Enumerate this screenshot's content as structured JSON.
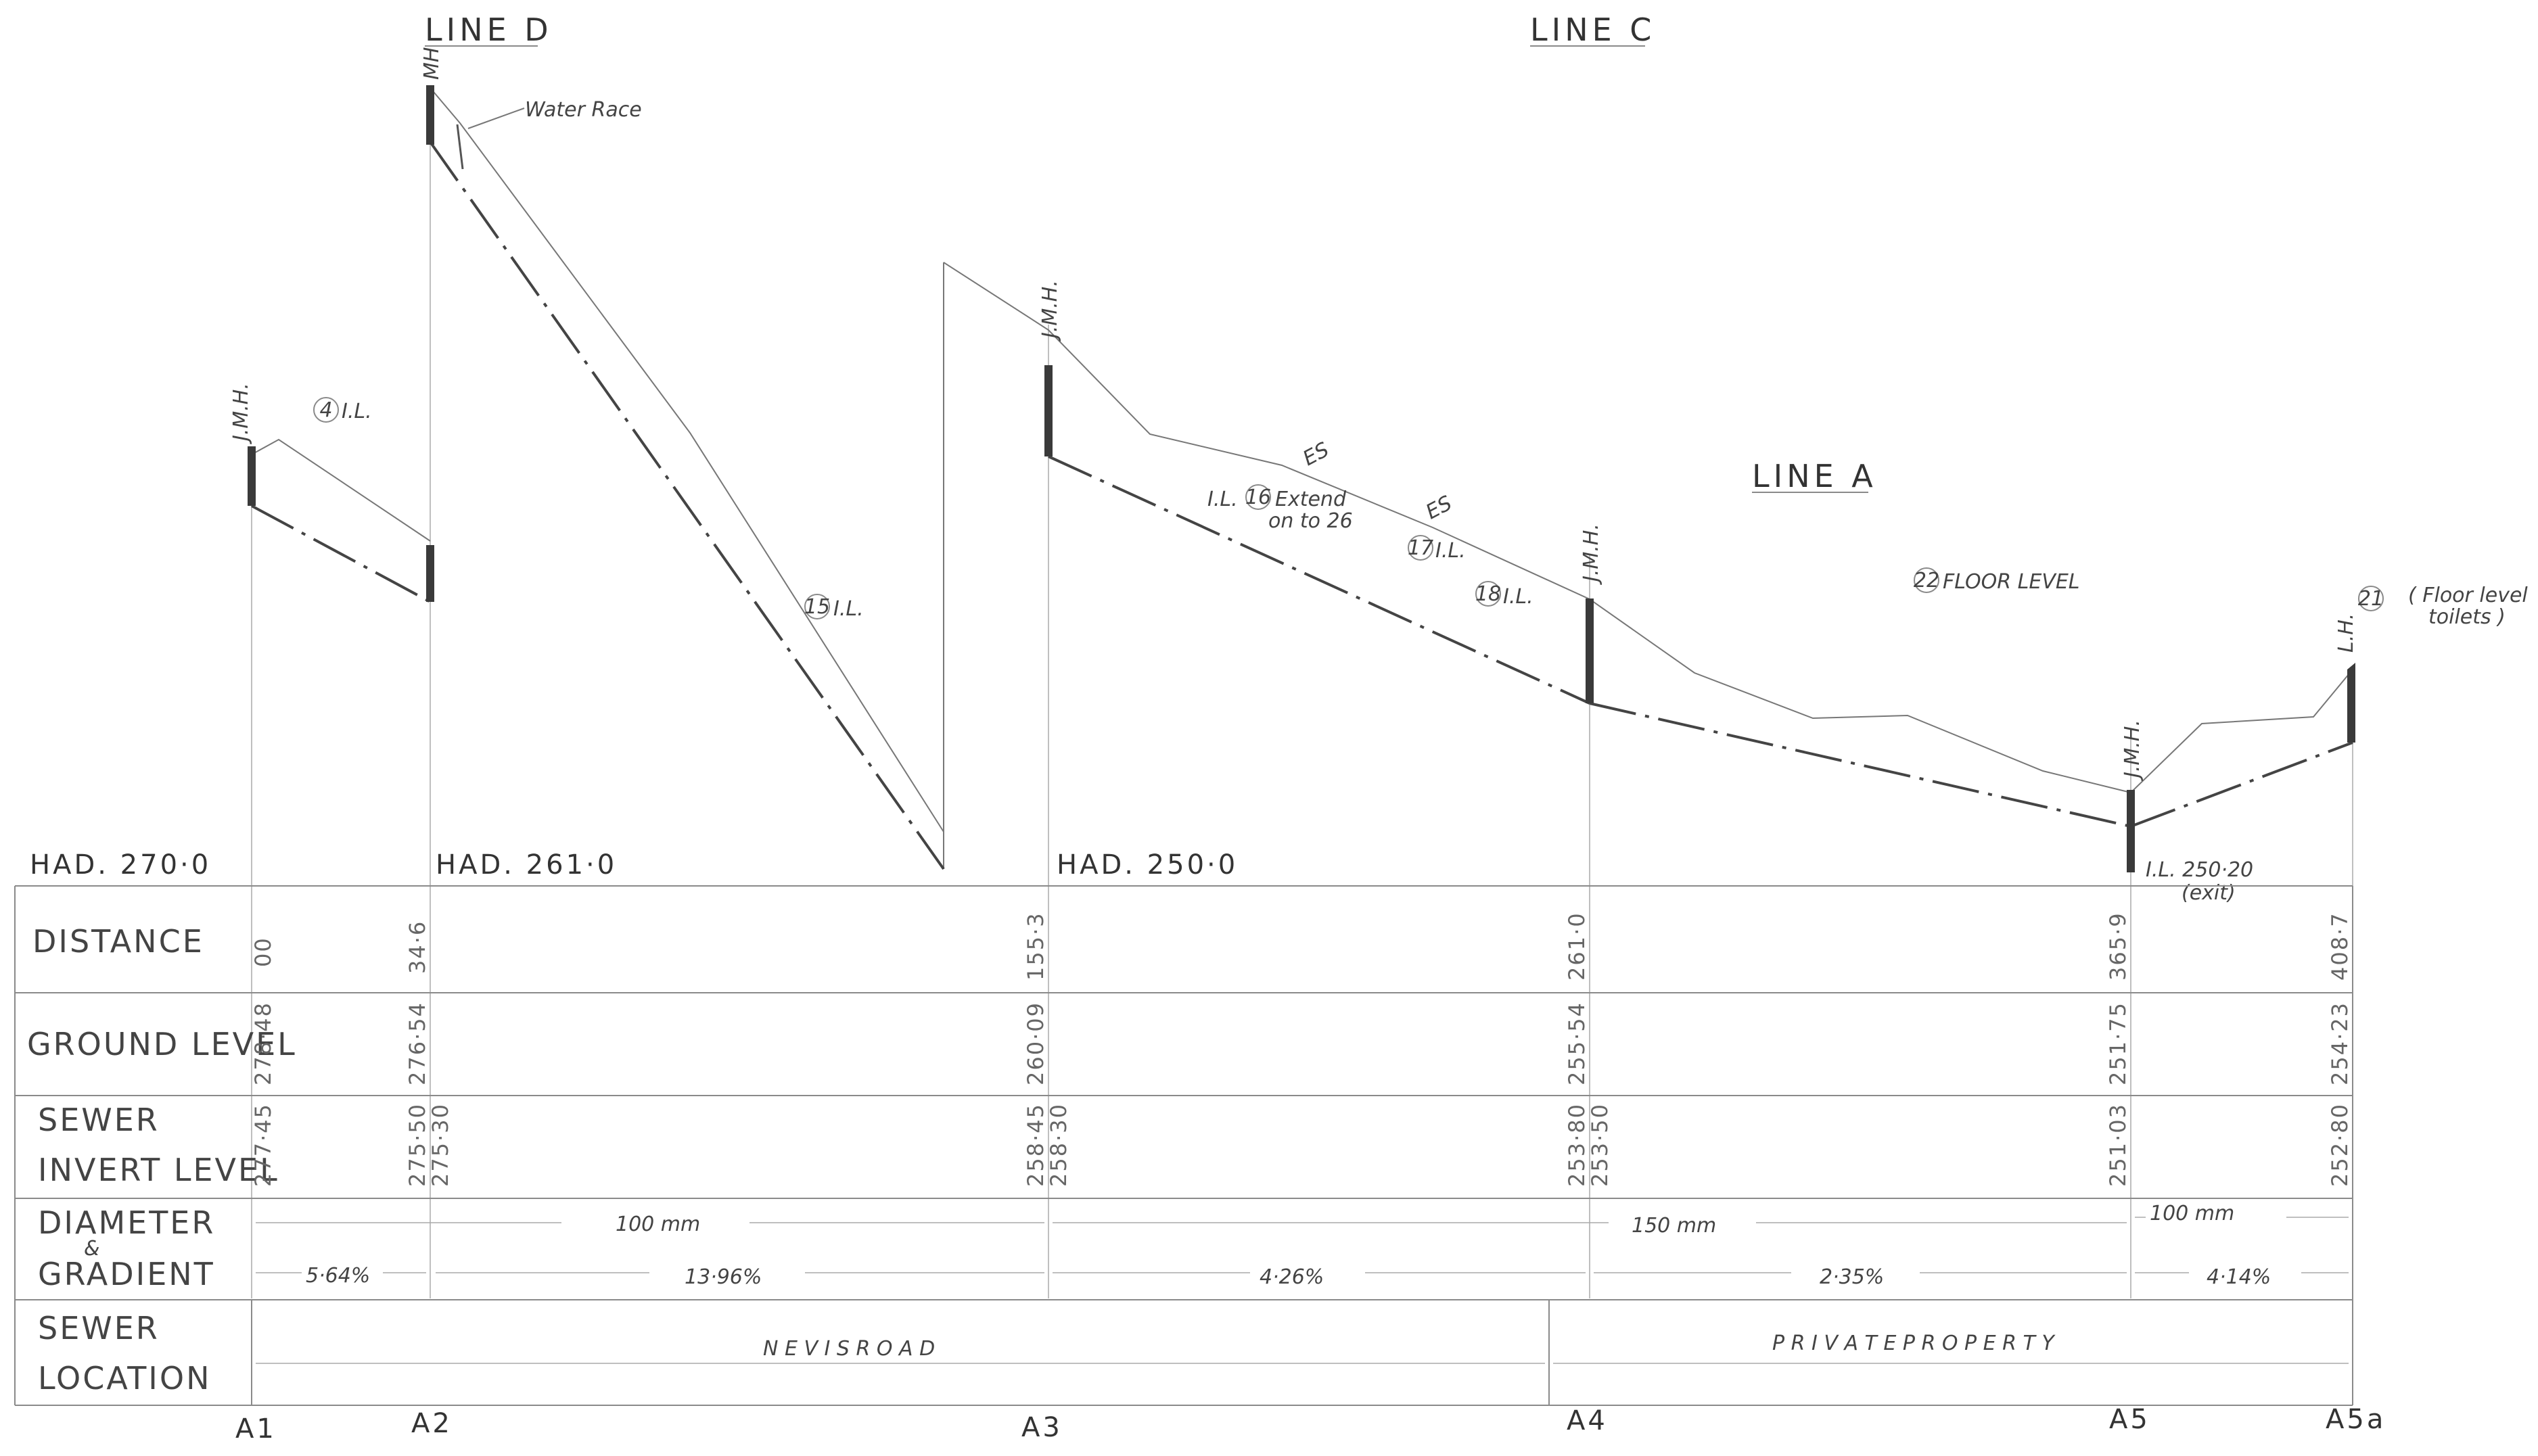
{
  "line_titles": {
    "line_d": "LINE D",
    "line_c": "LINE C",
    "line_a": "LINE A"
  },
  "datums": {
    "d1": "HAD. 270·0",
    "d2": "HAD. 261·0",
    "d3": "HAD. 250·0"
  },
  "annotations": {
    "water_race": "Water Race",
    "jmh": "J.M.H.",
    "mh": "MH",
    "lh": "L.H.",
    "il4": "I.L.",
    "n4": "4",
    "il15": "I.L.",
    "n15": "15",
    "il16": "I.L.",
    "n16": "16",
    "extend": "Extend",
    "on_to": "on to 26",
    "n17": "17",
    "il17": "I.L.",
    "n18": "18",
    "il18": "I.L.",
    "n22": "22",
    "floor_level": "FLOOR LEVEL",
    "n21": "21",
    "floor_level_toilets_1": "( Floor level",
    "floor_level_toilets_2": "toilets )",
    "es": "ES",
    "il_exit_1": "I.L. 250·20",
    "il_exit_2": "(exit)"
  },
  "rows": {
    "distance": "DISTANCE",
    "ground_level": "GROUND LEVEL",
    "sewer_invert_1": "SEWER",
    "sewer_invert_2": "INVERT LEVEL",
    "diameter_1": "DIAMETER",
    "diameter_amp": "&",
    "gradient": "GRADIENT",
    "location_1": "SEWER",
    "location_2": "LOCATION"
  },
  "stations": [
    {
      "name": "A1",
      "distance": "00",
      "ground": "278·48",
      "invert": [
        "277·45"
      ]
    },
    {
      "name": "A2",
      "distance": "34·6",
      "ground": "276·54",
      "invert": [
        "275·50",
        "275·30"
      ]
    },
    {
      "name": "A3",
      "distance": "155·3",
      "ground": "260·09",
      "invert": [
        "258·45",
        "258·30"
      ]
    },
    {
      "name": "A4",
      "distance": "261·0",
      "ground": "255·54",
      "invert": [
        "253·80",
        "253·50"
      ]
    },
    {
      "name": "A5",
      "distance": "365·9",
      "ground": "251·75",
      "invert": [
        "251·03"
      ]
    },
    {
      "name": "A5a",
      "distance": "408·7",
      "ground": "254·23",
      "invert": [
        "252·80"
      ]
    }
  ],
  "diameters": {
    "d100": "100 mm",
    "d150": "150 mm",
    "d100b": "100 mm"
  },
  "gradients": {
    "g1": "5·64%",
    "g2": "13·96%",
    "g3": "4·26%",
    "g4": "2·35%",
    "g5": "4·14%"
  },
  "locations": {
    "nevis": "N E V I S     R O A D",
    "private": "P R I V A T E     P R O P E R T Y"
  }
}
